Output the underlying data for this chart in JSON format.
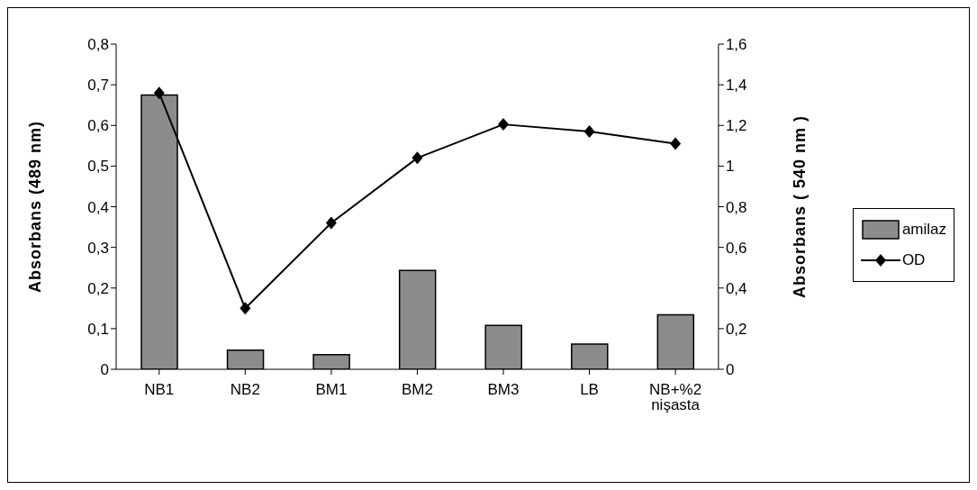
{
  "chart_data": {
    "type": "bar",
    "categories": [
      "NB1",
      "NB2",
      "BM1",
      "BM2",
      "BM3",
      "LB",
      "NB+%2 nişasta"
    ],
    "series": [
      {
        "name": "amilaz",
        "color": "#8c8c8c",
        "values": [
          0.675,
          0.047,
          0.036,
          0.243,
          0.108,
          0.062,
          0.134
        ]
      },
      {
        "name": "OD",
        "type": "line",
        "axis": "y2",
        "color": "#000000",
        "marker": "diamond",
        "values": [
          1.36,
          0.3,
          0.72,
          1.04,
          1.205,
          1.17,
          1.11
        ]
      }
    ],
    "ylabel": "Absorbans (489 nm)",
    "y2label": "Absorbans ( 540 nm )",
    "ylim": [
      0,
      0.8
    ],
    "yticks": [
      {
        "value": 0,
        "label": "0"
      },
      {
        "value": 0.1,
        "label": "0,1"
      },
      {
        "value": 0.2,
        "label": "0,2"
      },
      {
        "value": 0.3,
        "label": "0,3"
      },
      {
        "value": 0.4,
        "label": "0,4"
      },
      {
        "value": 0.5,
        "label": "0,5"
      },
      {
        "value": 0.6,
        "label": "0,6"
      },
      {
        "value": 0.7,
        "label": "0,7"
      },
      {
        "value": 0.8,
        "label": "0,8"
      }
    ],
    "y2lim": [
      0,
      1.6
    ],
    "y2ticks": [
      {
        "value": 0,
        "label": "0"
      },
      {
        "value": 0.2,
        "label": "0,2"
      },
      {
        "value": 0.4,
        "label": "0,4"
      },
      {
        "value": 0.6,
        "label": "0,6"
      },
      {
        "value": 0.8,
        "label": "0,8"
      },
      {
        "value": 1,
        "label": "1"
      },
      {
        "value": 1.2,
        "label": "1,2"
      },
      {
        "value": 1.4,
        "label": "1,4"
      },
      {
        "value": 1.6,
        "label": "1,6"
      }
    ],
    "grid": false,
    "legend": "right"
  }
}
